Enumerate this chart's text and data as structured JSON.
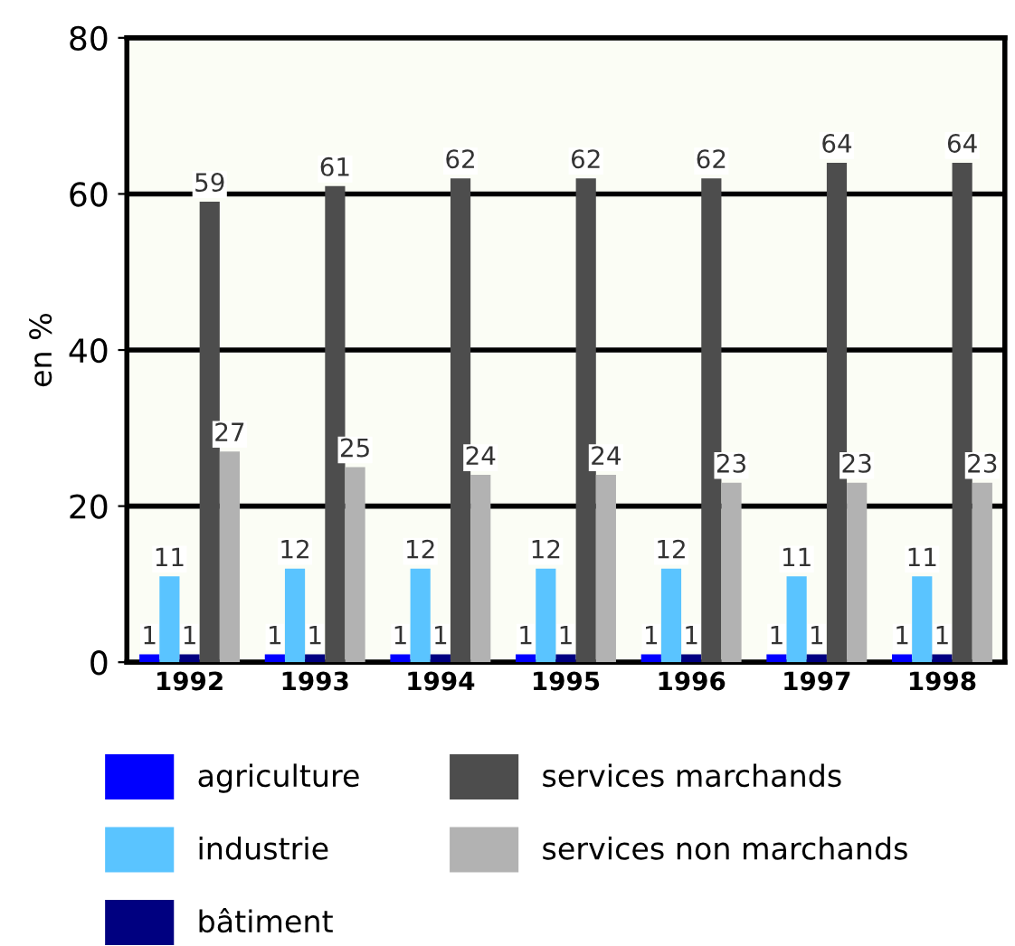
{
  "chart_data": {
    "type": "bar",
    "ylabel": "en %",
    "categories": [
      "1992",
      "1993",
      "1994",
      "1995",
      "1996",
      "1997",
      "1998"
    ],
    "series": [
      {
        "name": "agriculture",
        "color": "#0000ff",
        "values": [
          1,
          1,
          1,
          1,
          1,
          1,
          1
        ]
      },
      {
        "name": "industrie",
        "color": "#5ac4ff",
        "values": [
          11,
          12,
          12,
          12,
          12,
          11,
          11
        ]
      },
      {
        "name": "bâtiment",
        "color": "#000080",
        "values": [
          1,
          1,
          1,
          1,
          1,
          1,
          1
        ]
      },
      {
        "name": "services marchands",
        "color": "#4d4d4d",
        "values": [
          59,
          61,
          62,
          62,
          62,
          64,
          64
        ]
      },
      {
        "name": "services non marchands",
        "color": "#b2b2b2",
        "values": [
          27,
          25,
          24,
          24,
          23,
          23,
          23
        ]
      }
    ],
    "ylim": [
      0,
      80
    ],
    "yticks": [
      0,
      20,
      40,
      60,
      80
    ],
    "grid": "y",
    "data_labels": true,
    "legend": "bottom"
  }
}
